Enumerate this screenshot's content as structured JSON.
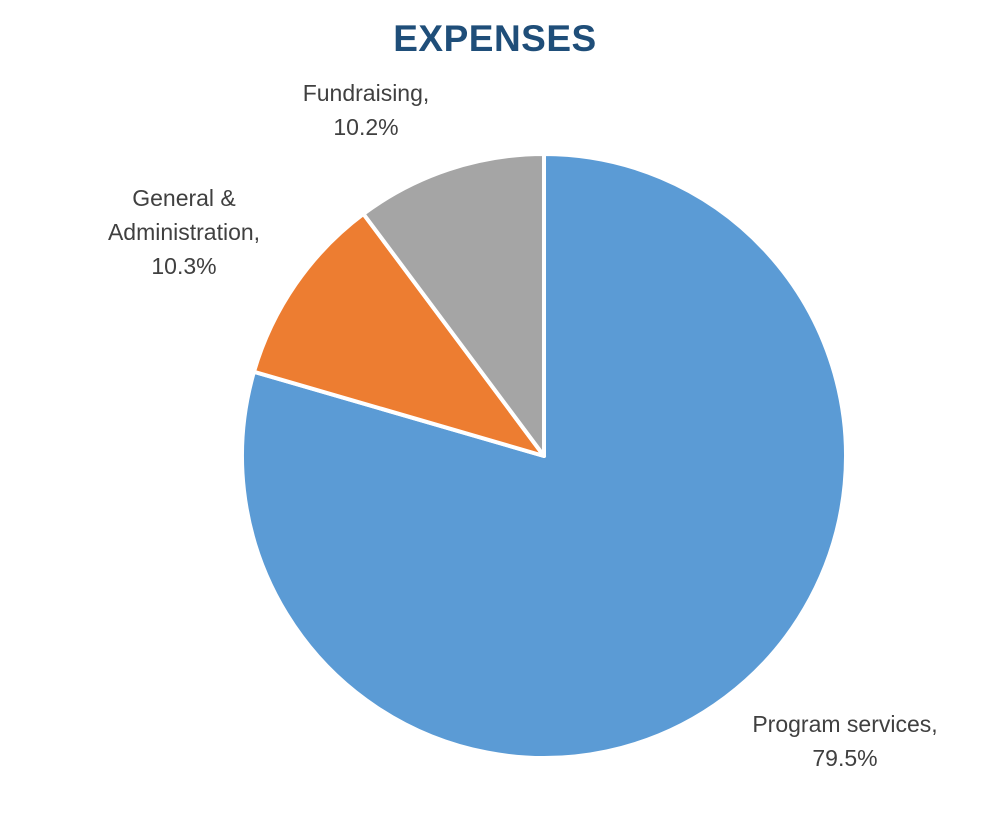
{
  "chart_data": {
    "type": "pie",
    "title": "EXPENSES",
    "slices": [
      {
        "label_lines": [
          "Program services,",
          "79.5%"
        ],
        "category": "Program services",
        "value": 79.5,
        "color": "#5b9bd5"
      },
      {
        "label_lines": [
          "General &",
          "Administration,",
          "10.3%"
        ],
        "category": "General & Administration",
        "value": 10.3,
        "color": "#ed7d31"
      },
      {
        "label_lines": [
          "Fundraising,",
          "10.2%"
        ],
        "category": "Fundraising",
        "value": 10.2,
        "color": "#a5a5a5"
      }
    ],
    "start_angle_deg": 0,
    "direction": "clockwise",
    "legend": "none"
  }
}
